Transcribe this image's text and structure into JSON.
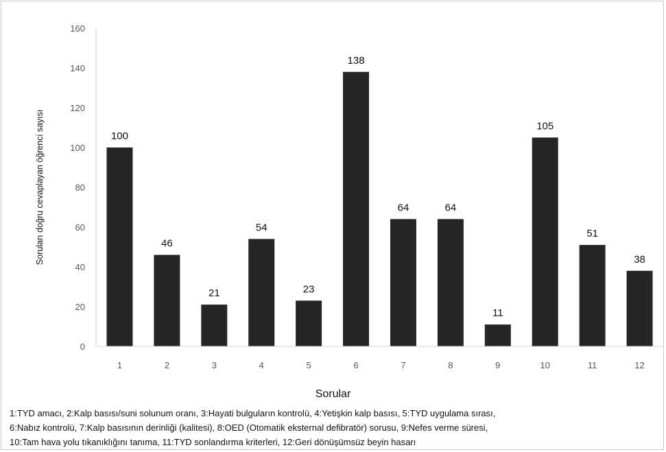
{
  "chart_data": {
    "type": "bar",
    "categories": [
      "1",
      "2",
      "3",
      "4",
      "5",
      "6",
      "7",
      "8",
      "9",
      "10",
      "11",
      "12"
    ],
    "values": [
      100,
      46,
      21,
      54,
      23,
      138,
      64,
      64,
      11,
      105,
      51,
      38
    ],
    "xlabel": "Sorular",
    "ylabel": "Soruları doğru cevaplayan öğrenci sayısı",
    "ylim": [
      0,
      160
    ],
    "yticks": [
      0,
      20,
      40,
      60,
      80,
      100,
      120,
      140,
      160
    ],
    "bar_color": "#262626",
    "grid": false,
    "data_labels": true
  },
  "caption": [
    "1:TYD amacı, 2:Kalp basısı/suni solunum oranı, 3:Hayati bulguların kontrolü, 4:Yetişkin kalp basısı, 5:TYD uygulama sırası,",
    "6:Nabız kontrolü, 7:Kalp basısının derinliği (kalitesi), 8:OED (Otomatik eksternal defibratör) sorusu, 9:Nefes verme süresi,",
    "10:Tam hava yolu tıkanıklığını tanıma, 11:TYD sonlandırma kriterleri, 12:Geri dönüşümsüz beyin hasarı"
  ]
}
